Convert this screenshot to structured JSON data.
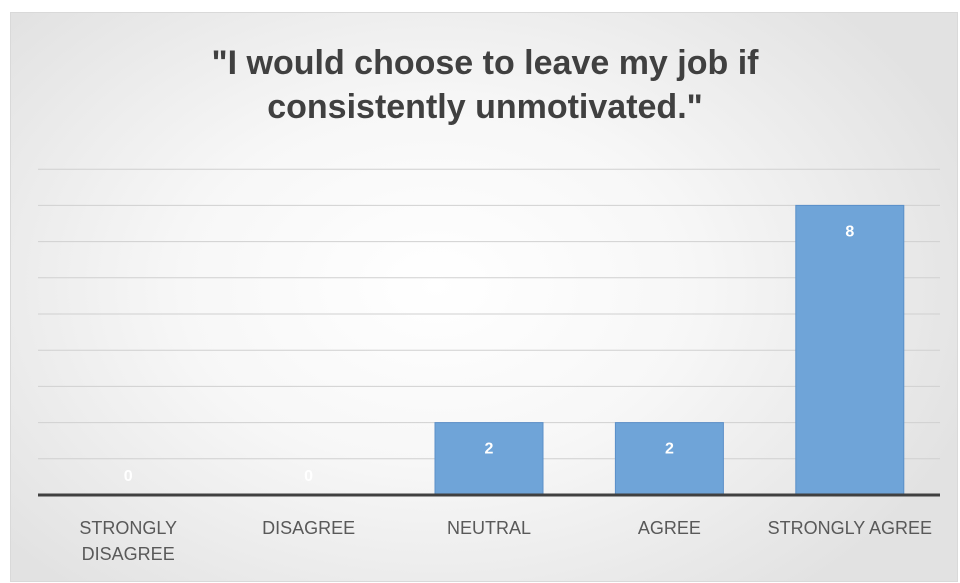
{
  "chart_data": {
    "type": "bar",
    "title_lines": [
      "\"I would choose to leave my job if",
      "consistently unmotivated.\""
    ],
    "categories": [
      "STRONGLY DISAGREE",
      "DISAGREE",
      "NEUTRAL",
      "AGREE",
      "STRONGLY AGREE"
    ],
    "category_label_lines": [
      [
        "STRONGLY",
        "DISAGREE"
      ],
      [
        "DISAGREE"
      ],
      [
        "NEUTRAL"
      ],
      [
        "AGREE"
      ],
      [
        "STRONGLY AGREE"
      ]
    ],
    "values": [
      0,
      0,
      2,
      2,
      8
    ],
    "ylim": [
      0,
      8
    ],
    "grid": true,
    "legend": "none",
    "colors": {
      "bar": "#6fa4d8",
      "bar_stroke": "#5b8fc8",
      "data_label": "#ffffff",
      "axis_text": "#595959",
      "grid": "#d0d0d0",
      "axis_line": "#404040"
    }
  }
}
